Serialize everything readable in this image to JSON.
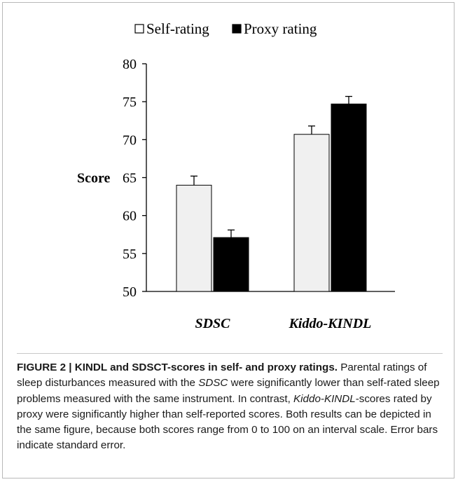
{
  "chart_data": {
    "type": "bar",
    "categories": [
      "SDSC",
      "Kiddo-KINDL"
    ],
    "series": [
      {
        "name": "Self-rating",
        "values": [
          64.0,
          70.7
        ],
        "errors": [
          1.2,
          1.1
        ],
        "color": "#f0f0f0"
      },
      {
        "name": "Proxy rating",
        "values": [
          57.1,
          74.7
        ],
        "errors": [
          1.0,
          1.0
        ],
        "color": "#000000"
      }
    ],
    "ylabel": "Score",
    "xlabel": "",
    "ylim": [
      50,
      80
    ],
    "yticks": [
      50,
      55,
      60,
      65,
      70,
      75,
      80
    ],
    "legend_position": "top",
    "grid": false,
    "error_bars": "standard error"
  },
  "caption": {
    "lead": "FIGURE 2 | KINDL and SDSCT-scores in self- and proxy ratings.",
    "t1": " Parental ratings of sleep disturbances measured with the ",
    "i1": "SDSC",
    "t2": " were significantly lower than self-rated sleep problems measured with the same instrument. In contrast, ",
    "i2": "Kiddo-KINDL",
    "t3": "-scores rated by proxy were significantly higher than self-reported scores. Both results can be depicted in the same figure, because both scores range from 0 to 100 on an interval scale. Error bars indicate standard error."
  }
}
